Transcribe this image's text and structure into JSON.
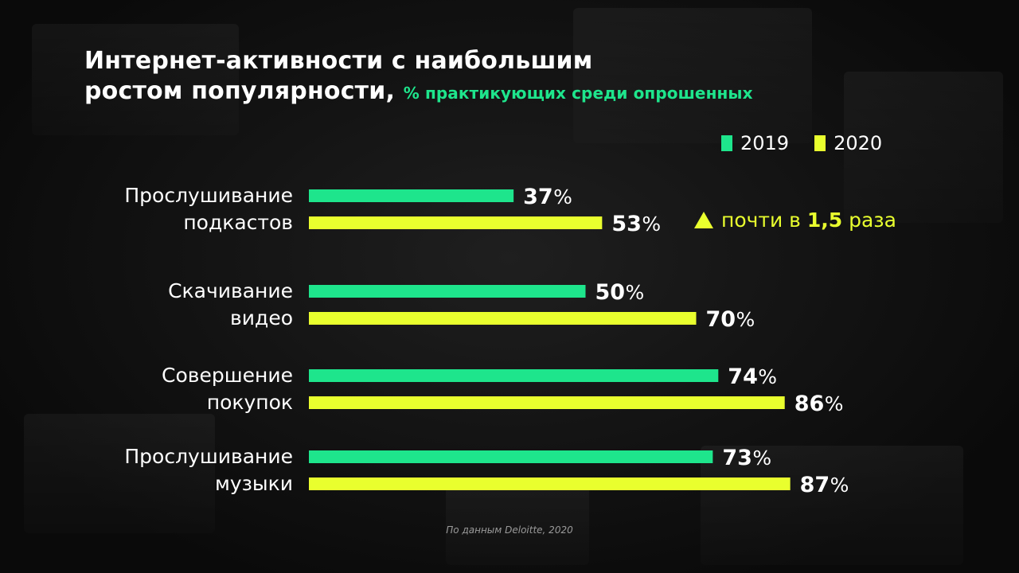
{
  "title": {
    "line1": "Интернет-активности с наибольшим",
    "line2": "ростом популярности,",
    "subtitle": "% практикующих среди опрошенных"
  },
  "colors": {
    "series_2019": "#1ee58c",
    "series_2020": "#e9ff2e"
  },
  "note": {
    "prefix": "почти в",
    "highlight": "1,5",
    "suffix": "раза"
  },
  "source": "По данным Deloitte, 2020",
  "chart_data": {
    "type": "bar",
    "orientation": "horizontal",
    "unit": "%",
    "categories": [
      [
        "Прослушивание",
        "подкастов"
      ],
      [
        "Скачивание",
        "видео"
      ],
      [
        "Совершение",
        "покупок"
      ],
      [
        "Прослушивание",
        "музыки"
      ]
    ],
    "series": [
      {
        "name": "2019",
        "values": [
          37,
          50,
          74,
          73
        ]
      },
      {
        "name": "2020",
        "values": [
          53,
          70,
          86,
          87
        ]
      }
    ],
    "xlim": [
      0,
      100
    ],
    "legend_position": "top-right",
    "grid": false
  }
}
